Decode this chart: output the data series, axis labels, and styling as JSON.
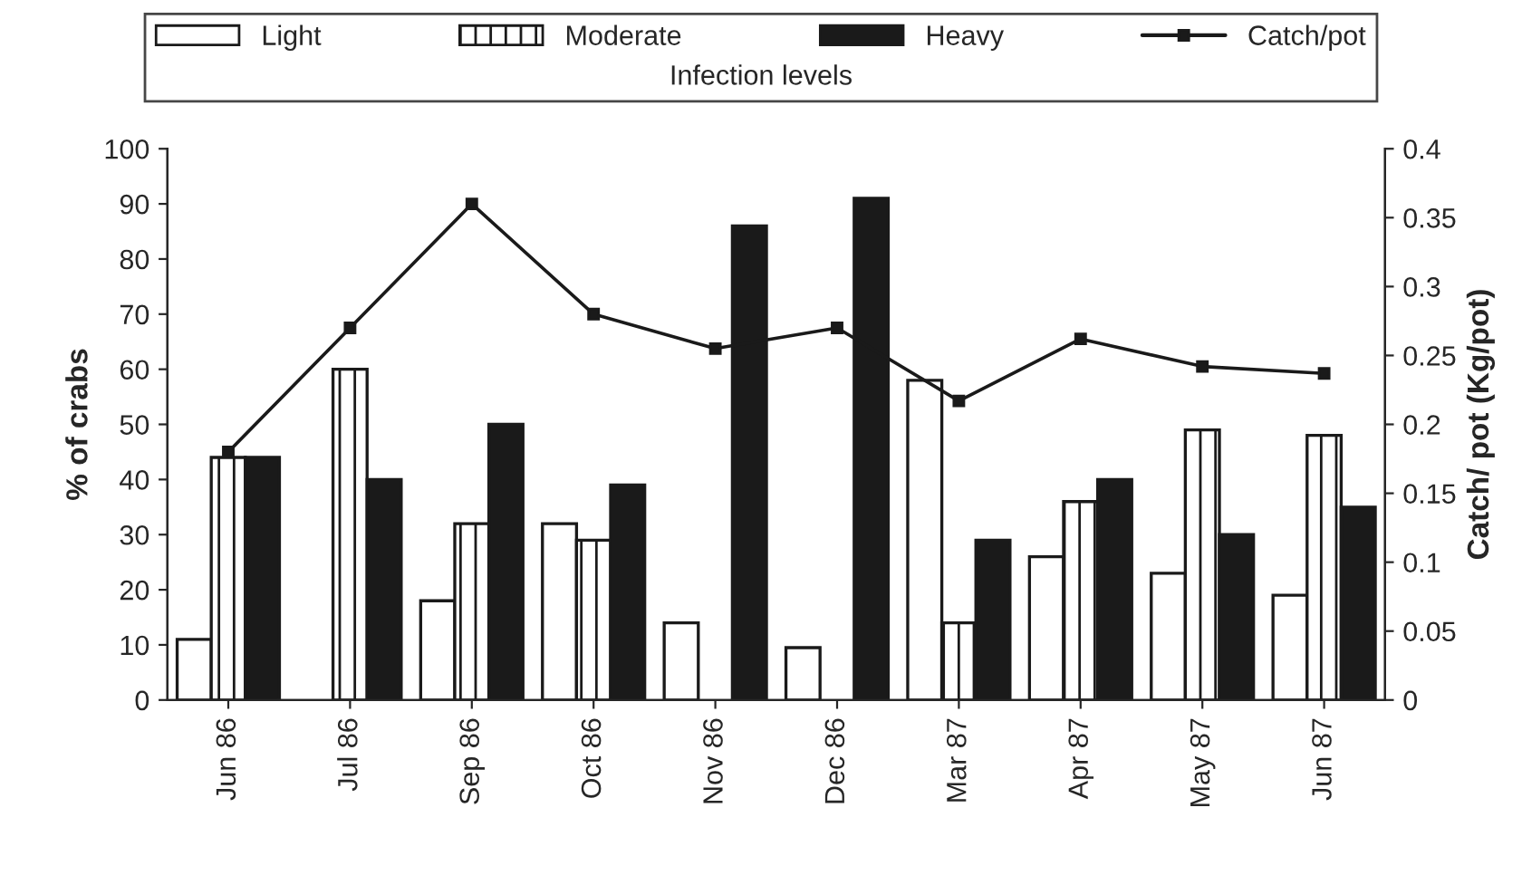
{
  "chart_data": {
    "type": "bar",
    "categories": [
      "Jun 86",
      "Jul 86",
      "Sep 86",
      "Oct 86",
      "Nov 86",
      "Dec 86",
      "Mar 87",
      "Apr 87",
      "May 87",
      "Jun 87"
    ],
    "series": [
      {
        "name": "Light",
        "color": "#ffffff",
        "values": [
          11,
          null,
          18,
          32,
          14,
          9.5,
          58,
          26,
          23,
          19
        ]
      },
      {
        "name": "Moderate",
        "color": "#1a1a1a",
        "values": [
          44,
          60,
          32,
          29,
          null,
          null,
          14,
          36,
          49,
          48
        ]
      },
      {
        "name": "Heavy",
        "color": "#1a1a1a",
        "values": [
          44,
          40,
          50,
          39,
          86,
          91,
          29,
          40,
          30,
          35
        ]
      },
      {
        "name": "Catch/pot",
        "type": "line",
        "axis": "y2",
        "color": "#1a1a1a",
        "marker": "square",
        "values": [
          0.18,
          0.27,
          0.36,
          0.28,
          0.255,
          0.27,
          0.217,
          0.262,
          0.242,
          0.237
        ]
      }
    ],
    "ylabel": "% of crabs",
    "y2label": "Catch/ pot (Kg/pot)",
    "legend_title": "Infection levels",
    "ylim": [
      0,
      100
    ],
    "yticks": [
      0,
      10,
      20,
      30,
      40,
      50,
      60,
      70,
      80,
      90,
      100
    ],
    "y2lim": [
      0,
      0.4
    ],
    "y2ticks": [
      0,
      0.05,
      0.1,
      0.15,
      0.2,
      0.25,
      0.3,
      0.35,
      0.4
    ],
    "legend": "top",
    "grid": false
  }
}
